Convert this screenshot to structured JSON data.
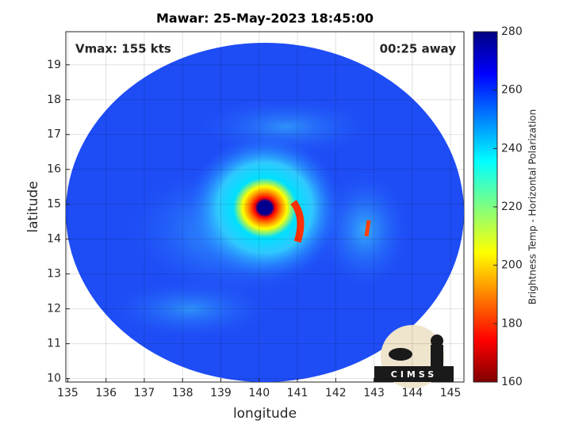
{
  "chart_data": {
    "type": "image",
    "title": "Mawar: 25-May-2023 18:45:00",
    "annotations": [
      "Vmax: 155 kts",
      "00:25 away"
    ],
    "x_label": "longitude",
    "y_label": "latitude",
    "xlim": [
      134.95,
      145.35
    ],
    "xticks": [
      135,
      136,
      137,
      138,
      139,
      140,
      141,
      142,
      143,
      144,
      145
    ],
    "ylim": [
      9.9,
      19.95
    ],
    "yticks": [
      10,
      11,
      12,
      13,
      14,
      15,
      16,
      17,
      18,
      19
    ],
    "grid": true,
    "colorbar": {
      "label": "Brightness Temp - Horizontal Polarization",
      "lim": [
        160,
        280
      ],
      "ticks": [
        160,
        180,
        200,
        220,
        240,
        260,
        280
      ]
    },
    "logo": "CIMSS"
  }
}
